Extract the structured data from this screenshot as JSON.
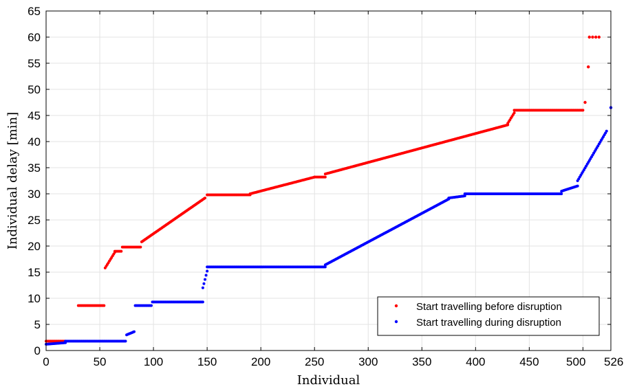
{
  "chart_data": {
    "type": "scatter",
    "title": "",
    "xlabel": "Individual",
    "ylabel": "Individual delay [min]",
    "xlim": [
      0,
      526
    ],
    "ylim": [
      0,
      65
    ],
    "xticks": [
      0,
      50,
      100,
      150,
      200,
      250,
      300,
      350,
      400,
      450,
      500,
      526
    ],
    "yticks": [
      0,
      5,
      10,
      15,
      20,
      25,
      30,
      35,
      40,
      45,
      50,
      55,
      60,
      65
    ],
    "grid": true,
    "legend_position": "bottom-right",
    "series": [
      {
        "name": "Start travelling before disruption",
        "color": "#ff0000",
        "segments": [
          {
            "x_start": 0,
            "x_end": 18,
            "y_start": 1.8,
            "y_end": 1.8
          },
          {
            "x_start": 30,
            "x_end": 54,
            "y_start": 8.6,
            "y_end": 8.6
          },
          {
            "x_start": 55,
            "x_end": 64,
            "y_start": 15.8,
            "y_end": 18.8
          },
          {
            "x_start": 64,
            "x_end": 70,
            "y_start": 19.0,
            "y_end": 19.0
          },
          {
            "x_start": 71,
            "x_end": 88,
            "y_start": 19.8,
            "y_end": 19.8
          },
          {
            "x_start": 89,
            "x_end": 148,
            "y_start": 20.8,
            "y_end": 29.2
          },
          {
            "x_start": 150,
            "x_end": 190,
            "y_start": 29.8,
            "y_end": 29.8
          },
          {
            "x_start": 190,
            "x_end": 250,
            "y_start": 30.0,
            "y_end": 33.2
          },
          {
            "x_start": 250,
            "x_end": 260,
            "y_start": 33.2,
            "y_end": 33.2
          },
          {
            "x_start": 260,
            "x_end": 430,
            "y_start": 33.8,
            "y_end": 43.2
          },
          {
            "x_start": 430,
            "x_end": 436,
            "y_start": 43.5,
            "y_end": 45.5
          },
          {
            "x_start": 436,
            "x_end": 500,
            "y_start": 46.0,
            "y_end": 46.0
          }
        ],
        "points": [
          {
            "x": 502,
            "y": 47.5
          },
          {
            "x": 505,
            "y": 54.3
          },
          {
            "x": 506,
            "y": 60.0
          },
          {
            "x": 509,
            "y": 60.0
          },
          {
            "x": 512,
            "y": 60.0
          },
          {
            "x": 515,
            "y": 60.0
          }
        ]
      },
      {
        "name": "Start travelling during disruption",
        "color": "#0000ff",
        "segments": [
          {
            "x_start": 0,
            "x_end": 18,
            "y_start": 1.2,
            "y_end": 1.5
          },
          {
            "x_start": 18,
            "x_end": 74,
            "y_start": 1.8,
            "y_end": 1.8
          },
          {
            "x_start": 75,
            "x_end": 82,
            "y_start": 3.0,
            "y_end": 3.6
          },
          {
            "x_start": 83,
            "x_end": 98,
            "y_start": 8.6,
            "y_end": 8.6
          },
          {
            "x_start": 99,
            "x_end": 146,
            "y_start": 9.3,
            "y_end": 9.3
          },
          {
            "x_start": 146,
            "x_end": 150,
            "y_start": 12.0,
            "y_end": 15.2
          },
          {
            "x_start": 150,
            "x_end": 260,
            "y_start": 16.0,
            "y_end": 16.0
          },
          {
            "x_start": 260,
            "x_end": 375,
            "y_start": 16.4,
            "y_end": 29.0
          },
          {
            "x_start": 375,
            "x_end": 390,
            "y_start": 29.2,
            "y_end": 29.6
          },
          {
            "x_start": 390,
            "x_end": 480,
            "y_start": 30.0,
            "y_end": 30.0
          },
          {
            "x_start": 480,
            "x_end": 495,
            "y_start": 30.5,
            "y_end": 31.5
          },
          {
            "x_start": 495,
            "x_end": 522,
            "y_start": 32.5,
            "y_end": 42.0
          }
        ],
        "points": [
          {
            "x": 526,
            "y": 46.5
          }
        ]
      }
    ]
  }
}
